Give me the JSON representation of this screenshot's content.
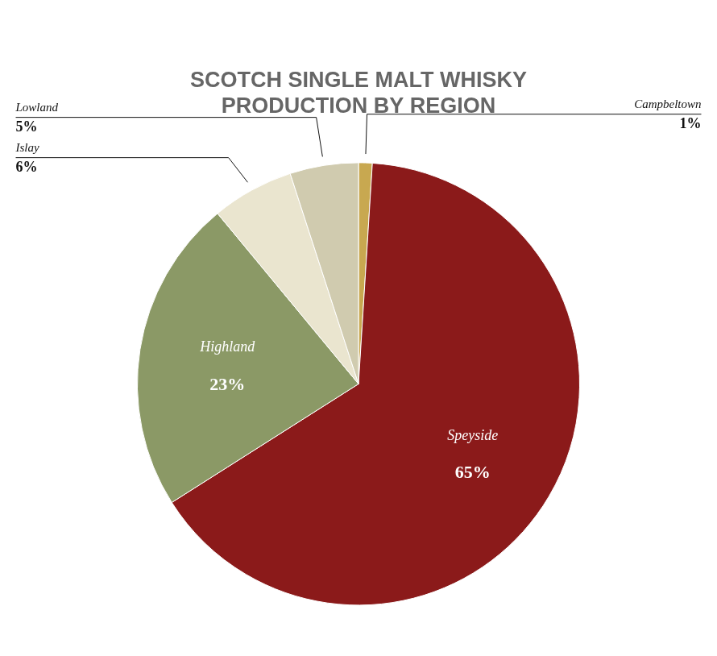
{
  "chart_data": {
    "type": "pie",
    "title": "SCOTCH SINGLE MALT WHISKY\nPRODUCTION BY REGION",
    "categories": [
      "Campbeltown",
      "Speyside",
      "Highland",
      "Islay",
      "Lowland"
    ],
    "values": [
      1,
      65,
      23,
      6,
      5
    ],
    "value_labels": [
      "1%",
      "65%",
      "23%",
      "6%",
      "5%"
    ],
    "colors": [
      "#C8A850",
      "#8B1A1A",
      "#8B9966",
      "#EAE5CF",
      "#D0CBAF"
    ],
    "data_labels": true
  }
}
